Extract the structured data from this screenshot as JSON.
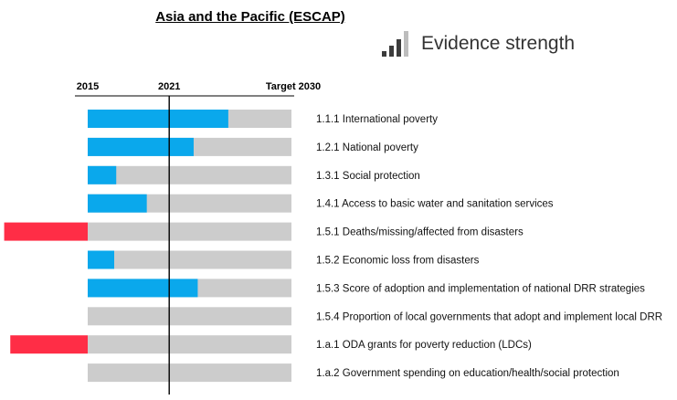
{
  "chart_data": {
    "type": "bar",
    "title": "Asia and the Pacific (ESCAP)",
    "orientation": "horizontal",
    "axis_ticks": [
      "2015",
      "2021",
      "Target 2030"
    ],
    "progress_unit": "fraction of the way to the 2030 target (0 = 2015 baseline, 1 = target reached; negative = regression)",
    "current_year_fraction": 0.4,
    "categories": [
      "1.1.1 International poverty",
      "1.2.1 National poverty",
      "1.3.1 Social protection",
      "1.4.1 Access to basic water and sanitation services",
      "1.5.1 Deaths/missing/affected from disasters",
      "1.5.2 Economic loss from disasters",
      "1.5.3 Score of adoption and implementation of national DRR strategies",
      "1.5.4 Proportion of local governments that adopt and implement local DRR",
      "1.a.1 ODA grants for poverty reduction (LDCs)",
      "1.a.2 Government spending on education/health/social protection"
    ],
    "values": [
      0.69,
      0.52,
      0.14,
      0.29,
      -0.41,
      0.13,
      0.54,
      0,
      -0.38,
      0
    ],
    "evidence_levels": [
      null,
      null,
      null,
      null,
      null,
      null,
      null,
      null,
      null,
      null
    ],
    "colors": {
      "progress": "#0aa8ec",
      "regression": "#ff2d46",
      "track": "#cccccc"
    },
    "legend": {
      "label": "Evidence strength",
      "position": "top-right"
    }
  }
}
